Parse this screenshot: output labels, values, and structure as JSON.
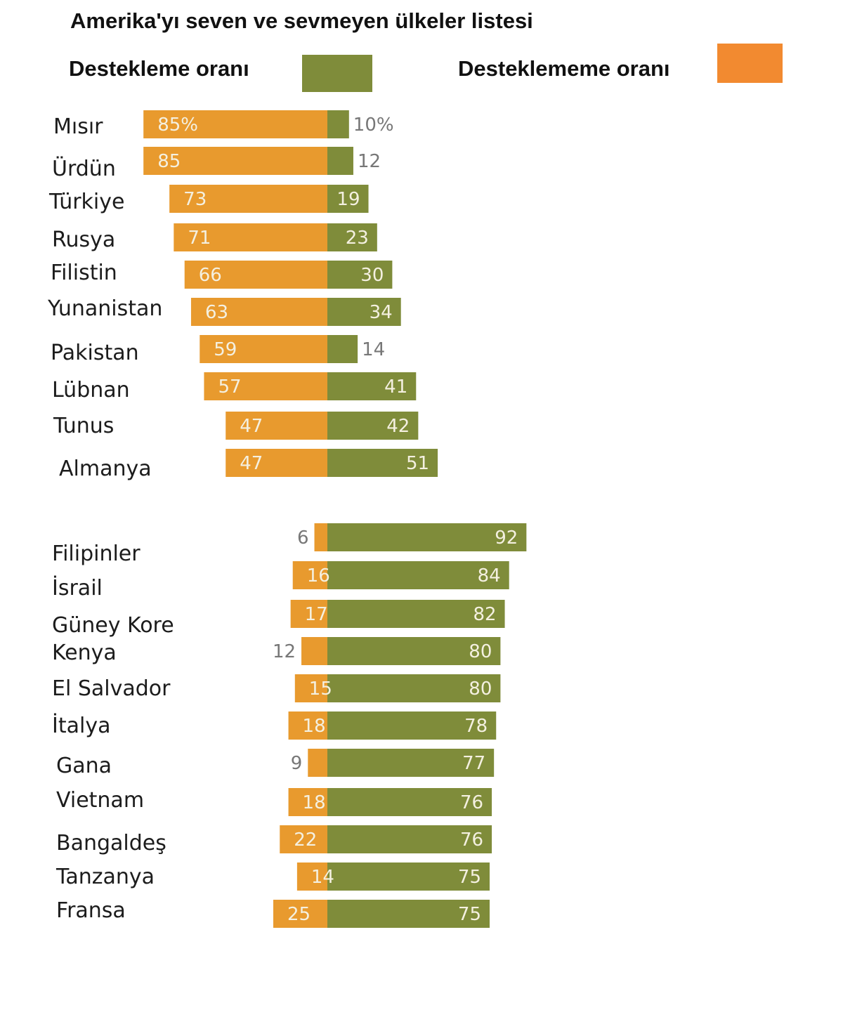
{
  "title": "Amerika'yı seven ve sevmeyen ülkeler listesi",
  "legend": [
    {
      "label": "Destekleme oranı",
      "color": "#7f8c3a"
    },
    {
      "label": "Desteklememe oranı",
      "color": "#f28a30"
    }
  ],
  "colors": {
    "support": "#7f8c3a",
    "oppose": "#e89a2e"
  },
  "chart_data": {
    "type": "bar",
    "orientation": "diverging-horizontal",
    "title": "Amerika'yı seven ve sevmeyen ülkeler listesi",
    "unit": "%",
    "groups": [
      {
        "countries": [
          "Mısır",
          "Ürdün",
          "Türkiye",
          "Rusya",
          "Filistin",
          "Yunanistan",
          "Pakistan",
          "Lübnan",
          "Tunus",
          "Almanya"
        ],
        "series": [
          {
            "name": "Desteklememe oranı",
            "values": [
              85,
              85,
              73,
              71,
              66,
              63,
              59,
              57,
              47,
              47
            ]
          },
          {
            "name": "Destekleme oranı",
            "values": [
              10,
              12,
              19,
              23,
              30,
              34,
              14,
              41,
              42,
              51
            ]
          }
        ],
        "oppose_labels": [
          "85%",
          "85",
          "73",
          "71",
          "66",
          "63",
          "59",
          "57",
          "47",
          "47"
        ],
        "support_labels": [
          "10%",
          "12",
          "19",
          "23",
          "30",
          "34",
          "14",
          "41",
          "42",
          "51"
        ]
      },
      {
        "countries": [
          "Filipinler",
          "İsrail",
          "Güney Kore",
          "Kenya",
          "El Salvador",
          "İtalya",
          "Gana",
          "Vietnam",
          "Bangaldeş",
          "Tanzanya",
          "Fransa"
        ],
        "series": [
          {
            "name": "Desteklememe oranı",
            "values": [
              6,
              16,
              17,
              12,
              15,
              18,
              9,
              18,
              22,
              14,
              25
            ]
          },
          {
            "name": "Destekleme oranı",
            "values": [
              92,
              84,
              82,
              80,
              80,
              78,
              77,
              76,
              76,
              75,
              75
            ]
          }
        ],
        "oppose_labels": [
          "6",
          "16",
          "17",
          "12",
          "15",
          "18",
          "9",
          "18",
          "22",
          "14",
          "25"
        ],
        "support_labels": [
          "92",
          "84",
          "82",
          "80",
          "80",
          "78",
          "77",
          "76",
          "76",
          "75",
          "75"
        ]
      }
    ]
  }
}
